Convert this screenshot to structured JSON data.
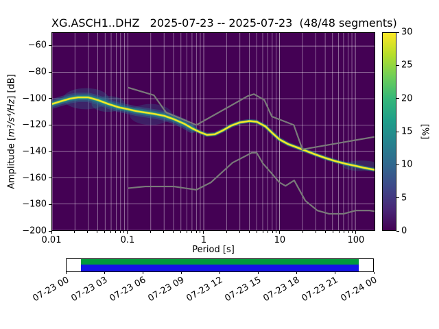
{
  "chart_data": {
    "type": "heatmap",
    "title": "XG.ASCH1..DHZ   2025-07-23 -- 2025-07-23  (48/48 segments)",
    "xlabel": "Period [s]",
    "ylabel": {
      "prefix": "Amplitude [",
      "math": "m²/s⁴/Hz",
      "suffix": "] [dB]"
    },
    "x_scale": "log",
    "xlim": [
      0.01,
      179
    ],
    "ylim": [
      -200,
      -50
    ],
    "x_tick_values": [
      0.01,
      0.1,
      1,
      10,
      100
    ],
    "x_tick_labels": [
      "0.01",
      "0.1",
      "1",
      "10",
      "100"
    ],
    "y_tick_values": [
      -60,
      -80,
      -100,
      -120,
      -140,
      -160,
      -180,
      -200
    ],
    "y_tick_labels": [
      "−60",
      "−80",
      "−100",
      "−120",
      "−140",
      "−160",
      "−180",
      "−200"
    ],
    "grid": true,
    "background_color": "#440154",
    "noise_model_color": "#7a7a7a",
    "colorbar": {
      "label": "[%]",
      "min": 0,
      "max": 30,
      "tick_values": [
        0,
        5,
        10,
        15,
        20,
        25,
        30
      ],
      "tick_labels": [
        "0",
        "5",
        "10",
        "15",
        "20",
        "25",
        "30"
      ],
      "colormap": "viridis",
      "stops": [
        "#440154",
        "#482878",
        "#3e4989",
        "#31688e",
        "#26828e",
        "#1f9e89",
        "#35b779",
        "#6ece58",
        "#b5de2b",
        "#fde725"
      ]
    },
    "psd_mode": {
      "name": "PPSD mode ridge",
      "periods_s": [
        0.01,
        0.013,
        0.017,
        0.022,
        0.03,
        0.04,
        0.055,
        0.075,
        0.1,
        0.13,
        0.17,
        0.22,
        0.3,
        0.4,
        0.55,
        0.7,
        0.9,
        1.1,
        1.4,
        1.8,
        2.3,
        3,
        4,
        5,
        6.5,
        8,
        10,
        13,
        17,
        22,
        30,
        40,
        55,
        75,
        100,
        130,
        179
      ],
      "db": [
        -104,
        -102,
        -100,
        -99,
        -99,
        -101,
        -104,
        -106.5,
        -108,
        -109.5,
        -110.5,
        -111.5,
        -113,
        -115.5,
        -119,
        -122.5,
        -125.5,
        -127.5,
        -127,
        -124,
        -120.5,
        -118,
        -117,
        -117.5,
        -121,
        -126,
        -131,
        -134.5,
        -137,
        -139.5,
        -142.5,
        -145,
        -147.5,
        -149.5,
        -151,
        -152.5,
        -154
      ]
    },
    "noise_models": {
      "nhnm": {
        "periods_s": [
          0.1,
          0.22,
          0.32,
          0.5,
          0.8,
          2.0,
          3.8,
          4.6,
          6.3,
          7.9,
          15.4,
          20,
          50,
          100,
          179
        ],
        "db": [
          -91.5,
          -97.4,
          -110.5,
          -115.1,
          -120.0,
          -107.1,
          -98.0,
          -96.5,
          -101.0,
          -113.5,
          -120.0,
          -138.5,
          -134.5,
          -131.5,
          -129.0
        ]
      },
      "nlnm": {
        "periods_s": [
          0.1,
          0.17,
          0.4,
          0.8,
          1.24,
          2.4,
          4.3,
          5.0,
          6.0,
          10,
          12,
          15.6,
          21.9,
          31.6,
          45,
          70,
          101,
          154,
          179
        ],
        "db": [
          -168.0,
          -166.7,
          -166.7,
          -169.2,
          -163.7,
          -148.6,
          -141.1,
          -141.1,
          -149.0,
          -163.7,
          -166.2,
          -162.1,
          -177.5,
          -185.0,
          -187.5,
          -187.5,
          -185.0,
          -185.0,
          -185.5
        ]
      }
    },
    "spread_blobs": [
      {
        "p": 0.028,
        "db": -100,
        "rdec": 0.3,
        "rdb": 8,
        "color": "#31688e",
        "opacity": 0.35
      },
      {
        "p": 0.2,
        "db": -112,
        "rdec": 0.28,
        "rdb": 8,
        "color": "#31688e",
        "opacity": 0.3
      },
      {
        "p": 0.055,
        "db": -104,
        "rdec": 0.22,
        "rdb": 6,
        "color": "#26828e",
        "opacity": 0.3
      },
      {
        "p": 120,
        "db": -151,
        "rdec": 0.25,
        "rdb": 4,
        "color": "#21918c",
        "opacity": 0.25
      }
    ],
    "availability": {
      "tick_labels": [
        "07-23 00",
        "07-23 03",
        "07-23 06",
        "07-23 09",
        "07-23 12",
        "07-23 15",
        "07-23 18",
        "07-23 21",
        "07-24 00"
      ],
      "coverage_color": "#009a3c",
      "segments_color": "#1414e6",
      "fill_start_frac": 0.046,
      "fill_end_frac": 0.952
    }
  }
}
